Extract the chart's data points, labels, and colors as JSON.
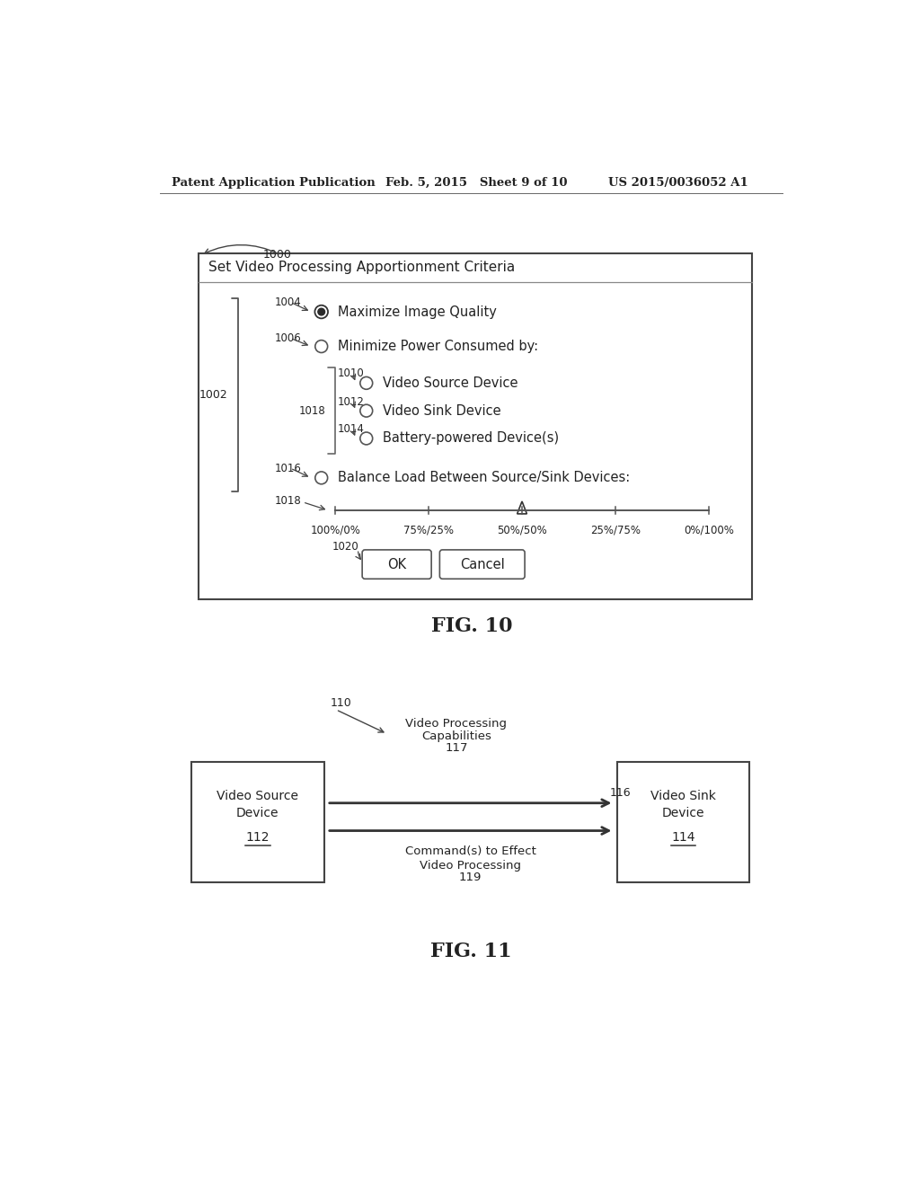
{
  "header_left": "Patent Application Publication",
  "header_mid": "Feb. 5, 2015   Sheet 9 of 10",
  "header_right": "US 2015/0036052 A1",
  "fig10_title": "FIG. 10",
  "fig11_title": "FIG. 11",
  "dialog_title": "Set Video Processing Apportionment Criteria",
  "label_1000": "1000",
  "label_1002": "1002",
  "label_1004": "1004",
  "label_1006": "1006",
  "label_1010": "1010",
  "label_1012": "1012",
  "label_1014": "1014",
  "label_1016": "1016",
  "label_1018_brace": "1018",
  "label_1018_slider": "1018",
  "label_1020": "1020",
  "text_maximize": "Maximize Image Quality",
  "text_minimize": "Minimize Power Consumed by:",
  "text_source": "Video Source Device",
  "text_sink": "Video Sink Device",
  "text_battery": "Battery-powered Device(s)",
  "text_balance": "Balance Load Between Source/Sink Devices:",
  "slider_labels": [
    "100%/0%",
    "75%/25%",
    "50%/50%",
    "25%/75%",
    "0%/100%"
  ],
  "btn_ok": "OK",
  "btn_cancel": "Cancel",
  "label_110": "110",
  "label_112": "112",
  "label_114": "114",
  "label_116": "116",
  "label_117": "117",
  "label_119": "119",
  "text_source_box": "Video Source\nDevice\n112",
  "text_sink_box": "Video Sink\nDevice\n114",
  "text_capabilities_line1": "Video Processing",
  "text_capabilities_line2": "Capabilities",
  "text_capabilities_line3": "117",
  "text_commands_line1": "Command(s) to Effect",
  "text_commands_line2": "Video Processing",
  "text_commands_line3": "119",
  "bg_color": "#ffffff",
  "text_color": "#222222",
  "border_color": "#444444"
}
